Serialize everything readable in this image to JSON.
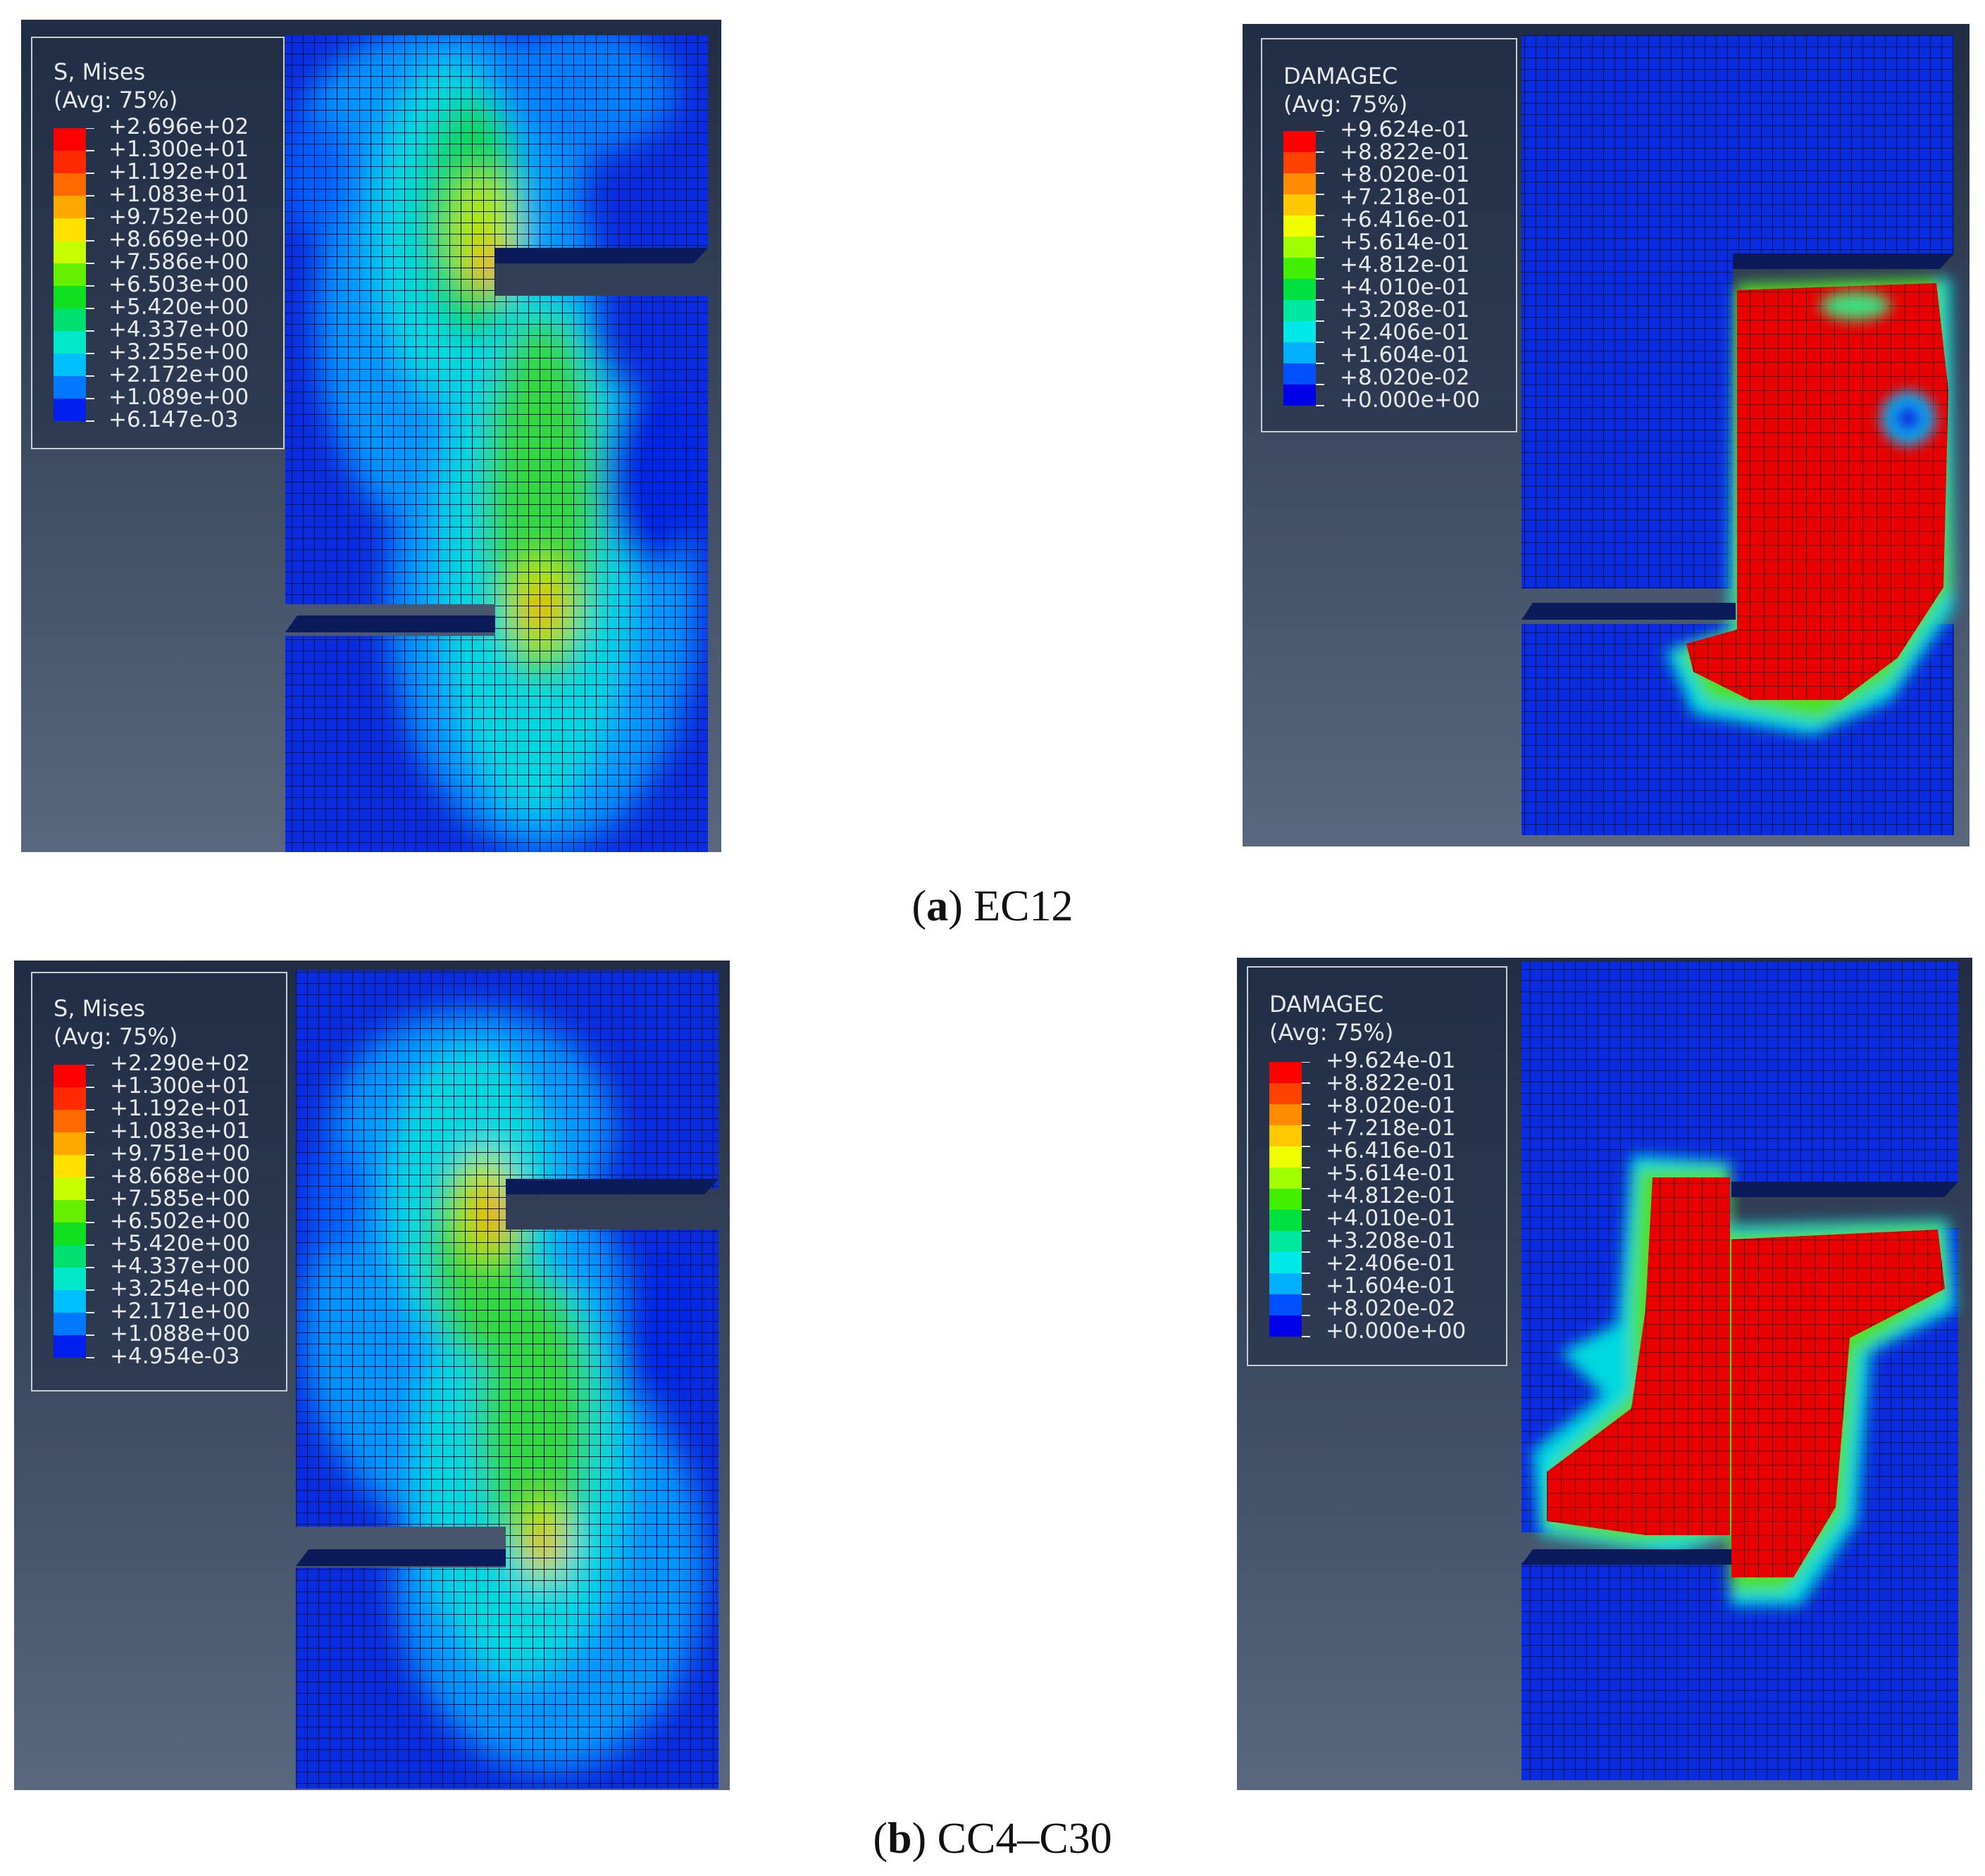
{
  "figures": [
    {
      "id": "a",
      "caption_letter": "a",
      "caption_text": "EC12",
      "mises_legend": {
        "title_line1": "S, Mises",
        "title_line2": "(Avg: 75%)",
        "values": [
          "+2.696e+02",
          "+1.300e+01",
          "+1.192e+01",
          "+1.083e+01",
          "+9.752e+00",
          "+8.669e+00",
          "+7.586e+00",
          "+6.503e+00",
          "+5.420e+00",
          "+4.337e+00",
          "+3.255e+00",
          "+2.172e+00",
          "+1.089e+00",
          "+6.147e-03"
        ]
      },
      "damage_legend": {
        "title_line1": "DAMAGEC",
        "title_line2": "(Avg: 75%)",
        "values": [
          "+9.624e-01",
          "+8.822e-01",
          "+8.020e-01",
          "+7.218e-01",
          "+6.416e-01",
          "+5.614e-01",
          "+4.812e-01",
          "+4.010e-01",
          "+3.208e-01",
          "+2.406e-01",
          "+1.604e-01",
          "+8.020e-02",
          "+0.000e+00"
        ]
      }
    },
    {
      "id": "b",
      "caption_letter": "b",
      "caption_text": "CC4–C30",
      "mises_legend": {
        "title_line1": "S, Mises",
        "title_line2": "(Avg: 75%)",
        "values": [
          "+2.290e+02",
          "+1.300e+01",
          "+1.192e+01",
          "+1.083e+01",
          "+9.751e+00",
          "+8.668e+00",
          "+7.585e+00",
          "+6.502e+00",
          "+5.420e+00",
          "+4.337e+00",
          "+3.254e+00",
          "+2.171e+00",
          "+1.088e+00",
          "+4.954e-03"
        ]
      },
      "damage_legend": {
        "title_line1": "DAMAGEC",
        "title_line2": "(Avg: 75%)",
        "values": [
          "+9.624e-01",
          "+8.822e-01",
          "+8.020e-01",
          "+7.218e-01",
          "+6.416e-01",
          "+5.614e-01",
          "+4.812e-01",
          "+4.010e-01",
          "+3.208e-01",
          "+2.406e-01",
          "+1.604e-01",
          "+8.020e-02",
          "+0.000e+00"
        ]
      }
    }
  ],
  "colors": {
    "background_top": "#1f2c44",
    "background_bottom": "#59677f",
    "mises_scale": [
      "#ff0000",
      "#ff2a00",
      "#ff6a00",
      "#ffa800",
      "#ffe000",
      "#c8ff00",
      "#64f000",
      "#10e020",
      "#00e070",
      "#00e8c8",
      "#00c0ff",
      "#0078ff",
      "#0020f0"
    ],
    "damage_scale": [
      "#ff0000",
      "#ff4200",
      "#ff8c00",
      "#ffc800",
      "#f0ff00",
      "#a0ff00",
      "#40f000",
      "#00e040",
      "#00e8a0",
      "#00e8e8",
      "#00b0ff",
      "#0050ff",
      "#0000e8"
    ],
    "mesh_base": "#0a2ce0"
  }
}
